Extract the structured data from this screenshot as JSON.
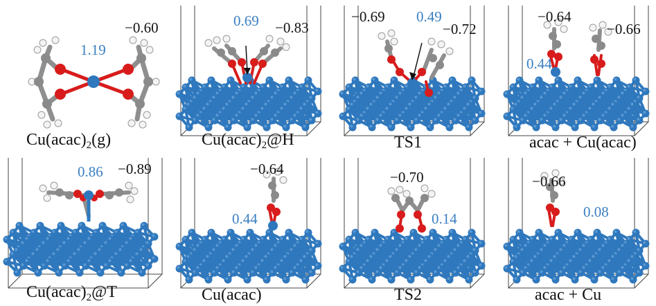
{
  "colors": {
    "copper": "#2f78bd",
    "copper_dark": "#1d5a98",
    "oxygen": "#d81c1c",
    "carbon": "#8a8a8a",
    "hydrogen": "#f2f2f2",
    "bond": "#8f8f8f",
    "cell_line": "#444444",
    "label_blue": "#3a7fc1",
    "label_black": "#111111"
  },
  "panels": [
    {
      "id": "p1",
      "caption_main": "Cu(acac)",
      "caption_sub": "2",
      "caption_tail": "(g)",
      "charges": [
        {
          "value": "1.19",
          "tone": "blue"
        },
        {
          "value": "−0.60",
          "tone": "black"
        }
      ]
    },
    {
      "id": "p2",
      "caption_main": "Cu(acac)",
      "caption_sub": "2",
      "caption_tail": "@H",
      "charges": [
        {
          "value": "0.69",
          "tone": "blue"
        },
        {
          "value": "−0.83",
          "tone": "black"
        }
      ]
    },
    {
      "id": "p3",
      "caption_main": "TS1",
      "caption_sub": "",
      "caption_tail": "",
      "charges": [
        {
          "value": "−0.69",
          "tone": "black"
        },
        {
          "value": "0.49",
          "tone": "blue"
        },
        {
          "value": "−0.72",
          "tone": "black"
        }
      ]
    },
    {
      "id": "p4",
      "caption_main": "acac + Cu(acac)",
      "caption_sub": "",
      "caption_tail": "",
      "charges": [
        {
          "value": "−0.64",
          "tone": "black"
        },
        {
          "value": "−0.66",
          "tone": "black"
        },
        {
          "value": "0.44",
          "tone": "blue"
        }
      ]
    },
    {
      "id": "p5",
      "caption_main": "Cu(acac)",
      "caption_sub": "2",
      "caption_tail": "@T",
      "charges": [
        {
          "value": "0.86",
          "tone": "blue"
        },
        {
          "value": "−0.89",
          "tone": "black"
        }
      ]
    },
    {
      "id": "p6",
      "caption_main": "Cu(acac)",
      "caption_sub": "",
      "caption_tail": "",
      "charges": [
        {
          "value": "−0.64",
          "tone": "black"
        },
        {
          "value": "0.44",
          "tone": "blue"
        }
      ]
    },
    {
      "id": "p7",
      "caption_main": "TS2",
      "caption_sub": "",
      "caption_tail": "",
      "charges": [
        {
          "value": "−0.70",
          "tone": "black"
        },
        {
          "value": "0.14",
          "tone": "blue"
        }
      ]
    },
    {
      "id": "p8",
      "caption_main": "acac + Cu",
      "caption_sub": "",
      "caption_tail": "",
      "charges": [
        {
          "value": "−0.66",
          "tone": "black"
        },
        {
          "value": "0.08",
          "tone": "blue"
        }
      ]
    }
  ]
}
